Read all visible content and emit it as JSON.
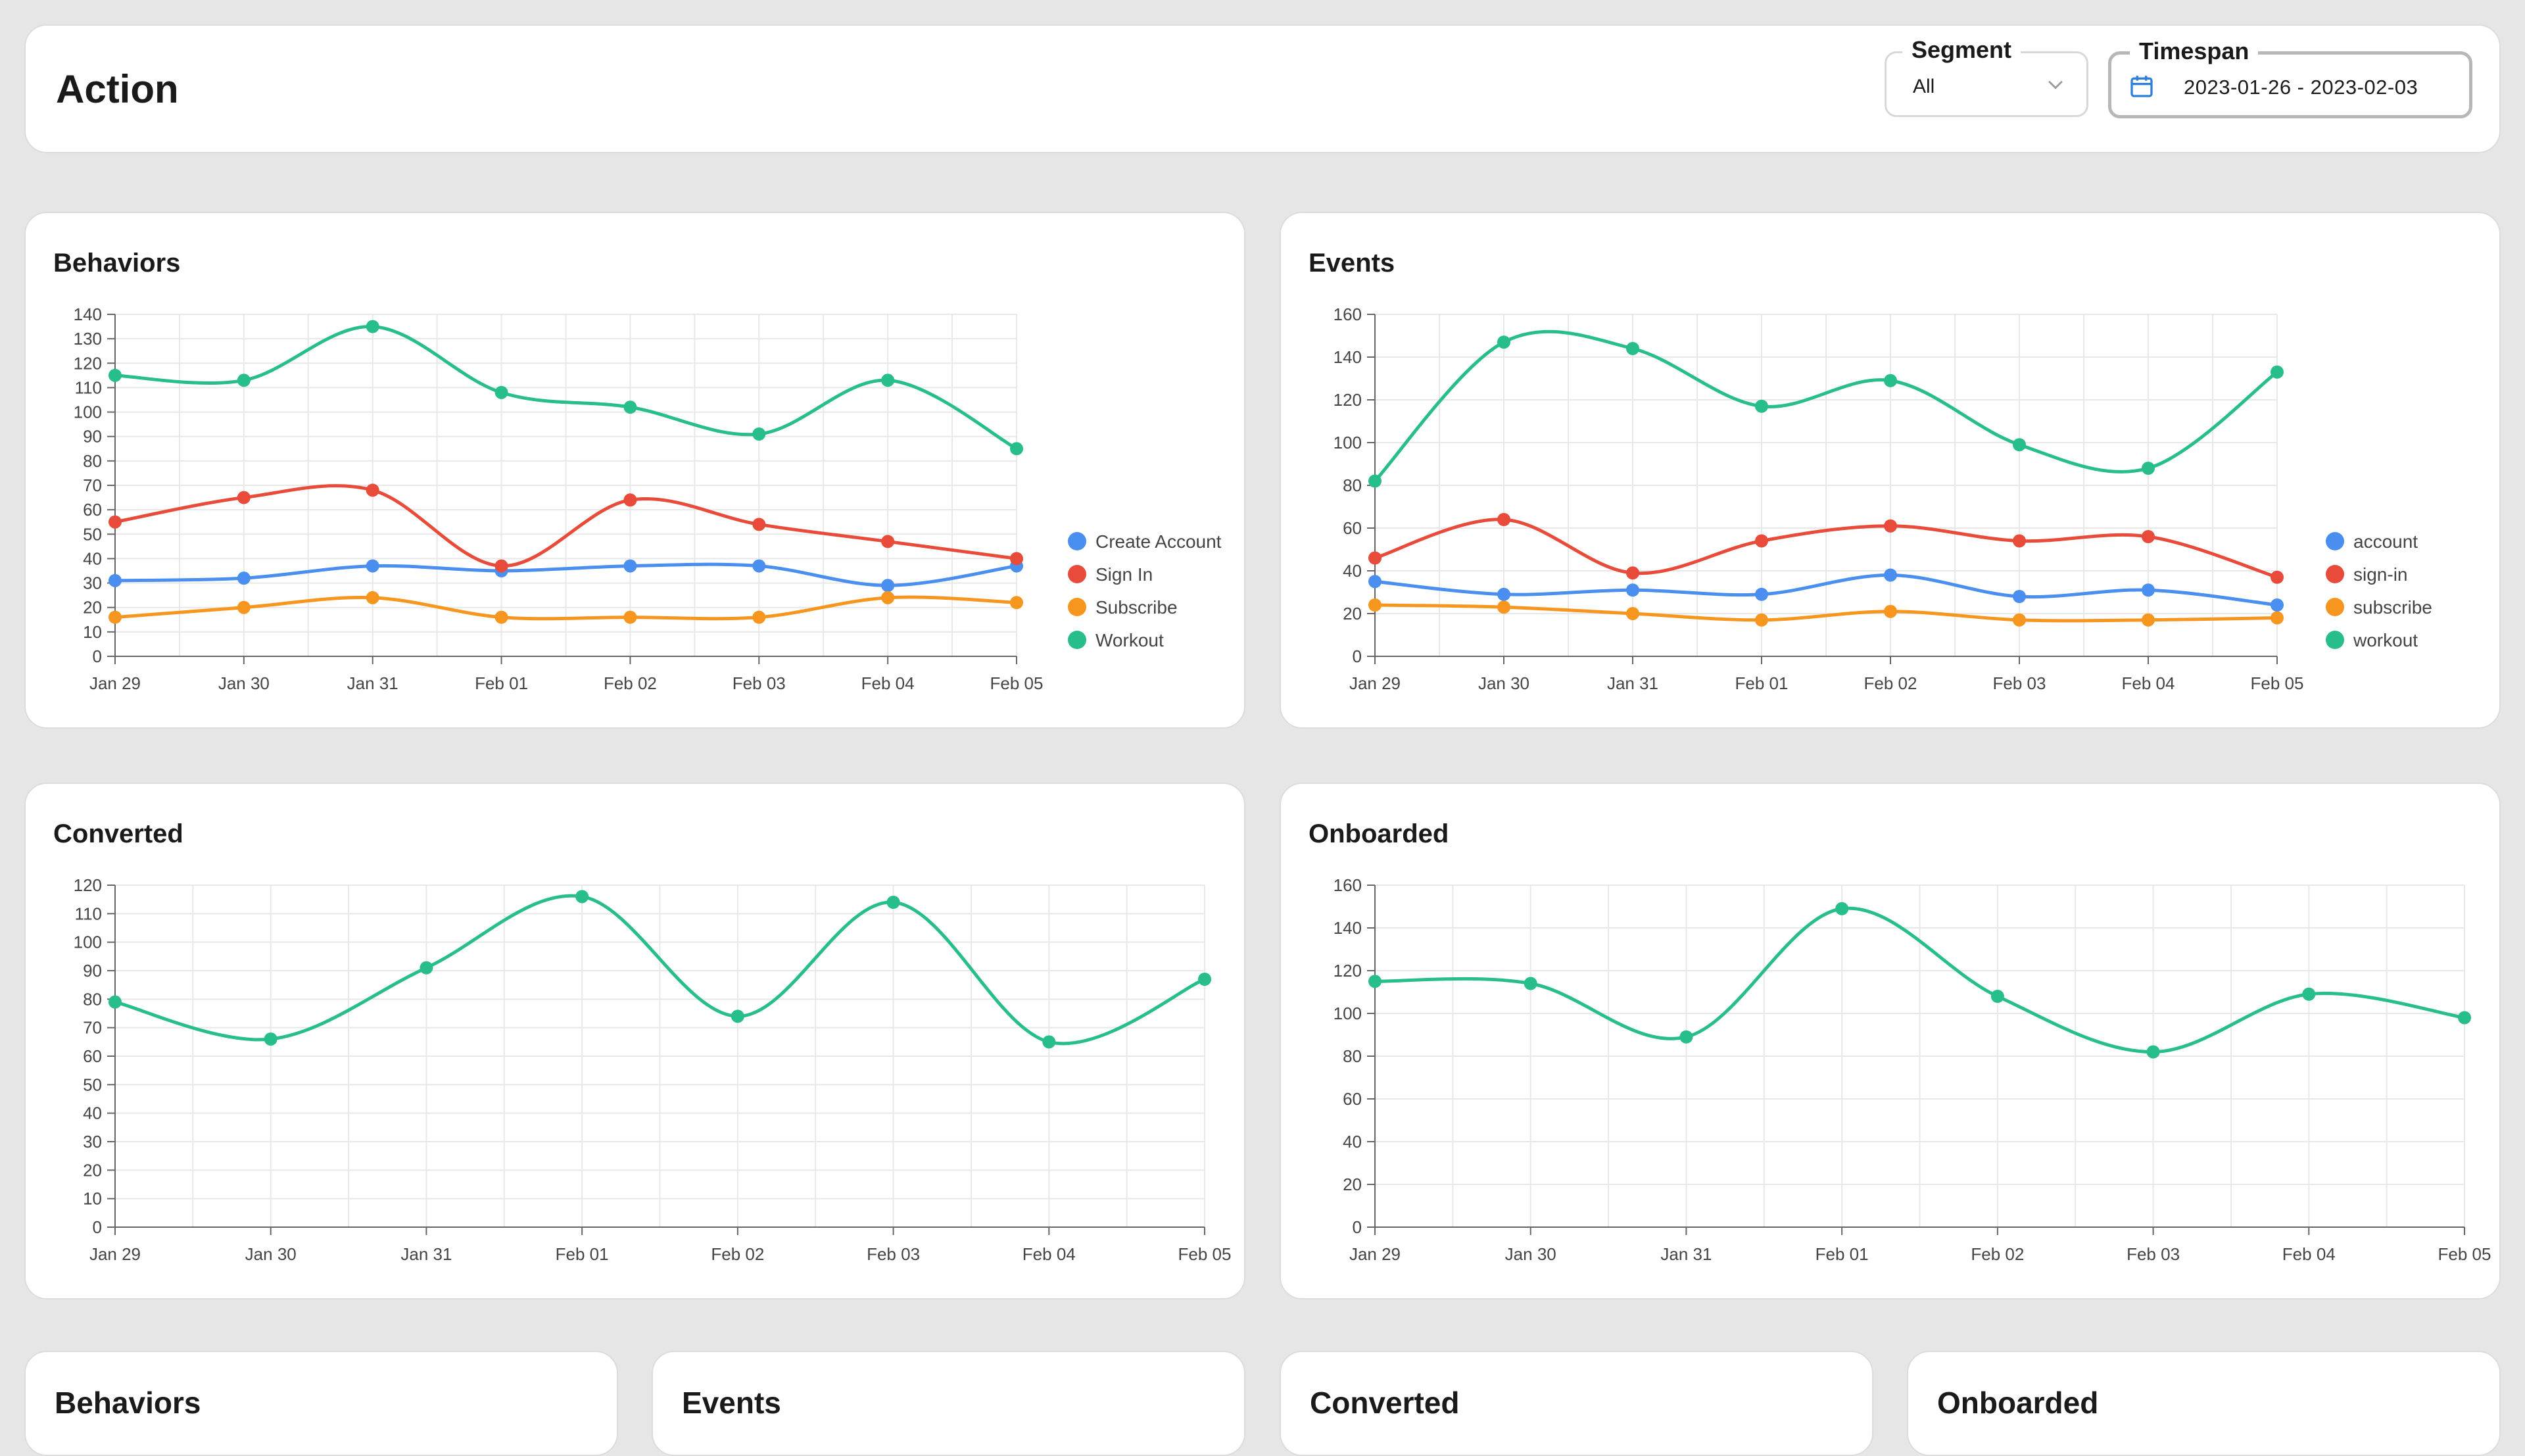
{
  "header": {
    "title": "Action",
    "segment": {
      "label": "Segment",
      "value": "All"
    },
    "timespan": {
      "label": "Timespan",
      "value": "2023-01-26 - 2023-02-03"
    }
  },
  "colors": {
    "blue": "#4a8ef0",
    "red": "#e84b3a",
    "orange": "#f7961e",
    "green": "#27be8c"
  },
  "icons": {
    "segment_chevron": "chevron-down-icon",
    "timespan": "calendar-icon"
  },
  "charts": {
    "behaviors": {
      "title": "Behaviors"
    },
    "events": {
      "title": "Events"
    },
    "converted": {
      "title": "Converted"
    },
    "onboarded": {
      "title": "Onboarded"
    }
  },
  "bottom_cards": [
    {
      "title": "Behaviors"
    },
    {
      "title": "Events"
    },
    {
      "title": "Converted"
    },
    {
      "title": "Onboarded"
    }
  ],
  "chart_data": [
    {
      "id": "behaviors",
      "type": "line",
      "title": "Behaviors",
      "categories": [
        "Jan 29",
        "Jan 30",
        "Jan 31",
        "Feb 01",
        "Feb 02",
        "Feb 03",
        "Feb 04",
        "Feb 05"
      ],
      "yticks": [
        0,
        10,
        20,
        30,
        40,
        50,
        60,
        70,
        80,
        90,
        100,
        110,
        120,
        130,
        140
      ],
      "ylim": [
        0,
        140
      ],
      "grid": true,
      "legend": "right",
      "series": [
        {
          "name": "Create Account",
          "color": "#4a8ef0",
          "values": [
            31,
            32,
            37,
            35,
            37,
            37,
            29,
            37
          ]
        },
        {
          "name": "Sign In",
          "color": "#e84b3a",
          "values": [
            55,
            65,
            68,
            37,
            64,
            54,
            47,
            40
          ]
        },
        {
          "name": "Subscribe",
          "color": "#f7961e",
          "values": [
            16,
            20,
            24,
            16,
            16,
            16,
            24,
            22
          ]
        },
        {
          "name": "Workout",
          "color": "#27be8c",
          "values": [
            115,
            113,
            135,
            108,
            102,
            91,
            113,
            85
          ]
        }
      ]
    },
    {
      "id": "events",
      "type": "line",
      "title": "Events",
      "categories": [
        "Jan 29",
        "Jan 30",
        "Jan 31",
        "Feb 01",
        "Feb 02",
        "Feb 03",
        "Feb 04",
        "Feb 05"
      ],
      "yticks": [
        0,
        20,
        40,
        60,
        80,
        100,
        120,
        140,
        160
      ],
      "ylim": [
        0,
        160
      ],
      "grid": true,
      "legend": "right",
      "series": [
        {
          "name": "account",
          "color": "#4a8ef0",
          "values": [
            35,
            29,
            31,
            29,
            38,
            28,
            31,
            24
          ]
        },
        {
          "name": "sign-in",
          "color": "#e84b3a",
          "values": [
            46,
            64,
            39,
            54,
            61,
            54,
            56,
            37
          ]
        },
        {
          "name": "subscribe",
          "color": "#f7961e",
          "values": [
            24,
            23,
            20,
            17,
            21,
            17,
            17,
            18
          ]
        },
        {
          "name": "workout",
          "color": "#27be8c",
          "values": [
            82,
            147,
            144,
            117,
            129,
            99,
            88,
            133
          ]
        }
      ]
    },
    {
      "id": "converted",
      "type": "line",
      "title": "Converted",
      "categories": [
        "Jan 29",
        "Jan 30",
        "Jan 31",
        "Feb 01",
        "Feb 02",
        "Feb 03",
        "Feb 04",
        "Feb 05"
      ],
      "yticks": [
        0,
        10,
        20,
        30,
        40,
        50,
        60,
        70,
        80,
        90,
        100,
        110,
        120
      ],
      "ylim": [
        0,
        120
      ],
      "grid": true,
      "legend": "none",
      "series": [
        {
          "color": "#27be8c",
          "values": [
            79,
            66,
            91,
            116,
            74,
            114,
            65,
            87
          ]
        }
      ]
    },
    {
      "id": "onboarded",
      "type": "line",
      "title": "Onboarded",
      "categories": [
        "Jan 29",
        "Jan 30",
        "Jan 31",
        "Feb 01",
        "Feb 02",
        "Feb 03",
        "Feb 04",
        "Feb 05"
      ],
      "yticks": [
        0,
        20,
        40,
        60,
        80,
        100,
        120,
        140,
        160
      ],
      "ylim": [
        0,
        160
      ],
      "grid": true,
      "legend": "none",
      "series": [
        {
          "color": "#27be8c",
          "values": [
            115,
            114,
            89,
            149,
            108,
            82,
            109,
            98
          ]
        }
      ]
    }
  ]
}
